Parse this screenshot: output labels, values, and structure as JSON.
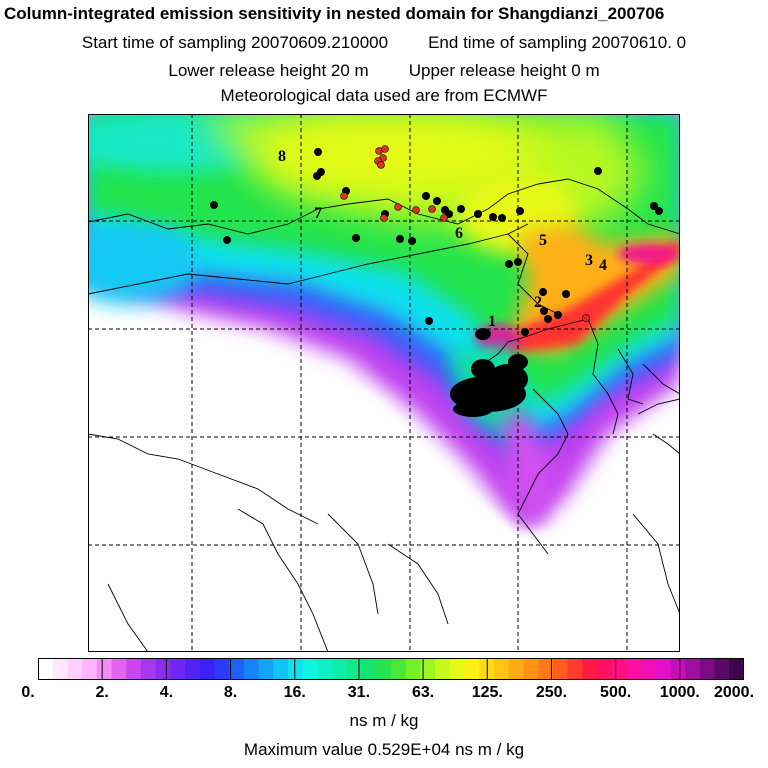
{
  "header": {
    "title": "Column-integrated emission sensitivity in nested domain for Shangdianzi_200706",
    "start_label": "Start time of sampling 20070609.210000",
    "end_label": "End time of sampling 20070610.     0",
    "lower_label": "Lower release height   20 m",
    "upper_label": "Upper release height    0 m",
    "met_label": "Meteorological data used are from ECMWF"
  },
  "map": {
    "labels": [
      "8",
      "7",
      "6",
      "5",
      "3",
      "4",
      "2",
      "1"
    ]
  },
  "legend": {
    "ticks": [
      "0.",
      "2.",
      "4.",
      "8.",
      "16.",
      "31.",
      "63.",
      "125.",
      "250.",
      "500.",
      "1000.",
      "2000."
    ],
    "colors": [
      "#ffffff",
      "#ffe8ff",
      "#ffd0ff",
      "#ffb4ff",
      "#f58cf5",
      "#e466f0",
      "#cc44ee",
      "#a638f0",
      "#8c2cf0",
      "#7026f4",
      "#5522f4",
      "#3a22f4",
      "#2a3cf8",
      "#1c62f8",
      "#1684f8",
      "#12a4f8",
      "#10c4f4",
      "#10e0ee",
      "#10f4e2",
      "#10f0c4",
      "#10ecaa",
      "#12e88a",
      "#16e46e",
      "#28e44e",
      "#4ae836",
      "#72f028",
      "#9cf620",
      "#c4fa1c",
      "#e6fa18",
      "#fcf014",
      "#ffdc14",
      "#ffc414",
      "#ffac14",
      "#ff9414",
      "#ff7a18",
      "#ff5c20",
      "#ff3c2c",
      "#ff1a44",
      "#ff1060",
      "#ff1080",
      "#fa10a0",
      "#f010b6",
      "#e410c8",
      "#c410b8",
      "#a010a0",
      "#7c0c84",
      "#5c0866",
      "#3c044a"
    ],
    "unit": "ns m / kg",
    "max_value": "Maximum value  0.529E+04 ns m / kg"
  }
}
